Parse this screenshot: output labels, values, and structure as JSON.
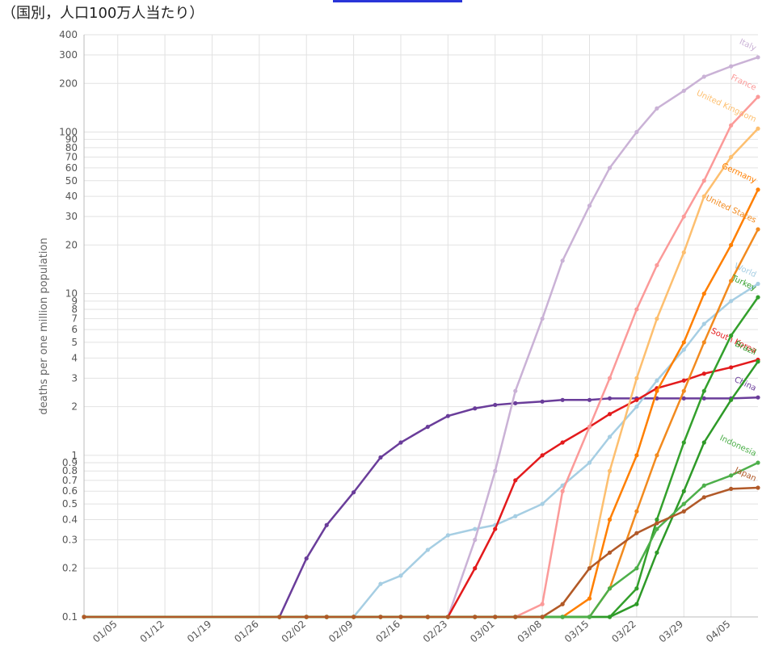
{
  "chart_data": {
    "type": "line",
    "title": "（国別，人口100万人当たり）",
    "y_label": "deaths per one million population",
    "log_scale": true,
    "grid": true,
    "x": [
      0,
      29,
      33,
      36,
      40,
      44,
      47,
      51,
      54,
      58,
      61,
      64,
      68,
      71,
      75,
      78,
      82,
      85,
      89,
      92,
      96,
      100
    ],
    "xlim": [
      0,
      100
    ],
    "xticks": [
      {
        "value": 5,
        "label": "01/05"
      },
      {
        "value": 12,
        "label": "01/12"
      },
      {
        "value": 19,
        "label": "01/19"
      },
      {
        "value": 26,
        "label": "01/26"
      },
      {
        "value": 33,
        "label": "02/02"
      },
      {
        "value": 40,
        "label": "02/09"
      },
      {
        "value": 47,
        "label": "02/16"
      },
      {
        "value": 54,
        "label": "02/23"
      },
      {
        "value": 61,
        "label": "03/01"
      },
      {
        "value": 68,
        "label": "03/08"
      },
      {
        "value": 75,
        "label": "03/15"
      },
      {
        "value": 82,
        "label": "03/22"
      },
      {
        "value": 89,
        "label": "03/29"
      },
      {
        "value": 96,
        "label": "04/05"
      }
    ],
    "ylim": [
      0.1,
      400
    ],
    "yticks": [
      0.1,
      0.2,
      0.3,
      0.4,
      0.5,
      0.6,
      0.7,
      0.8,
      0.9,
      1,
      2,
      3,
      4,
      5,
      6,
      7,
      8,
      9,
      10,
      20,
      30,
      40,
      50,
      60,
      70,
      80,
      90,
      100,
      200,
      300,
      400
    ],
    "series": [
      {
        "name": "China",
        "color": "#6a3d9a",
        "values": [
          0.1,
          0.1,
          0.23,
          0.37,
          0.59,
          0.97,
          1.2,
          1.5,
          1.75,
          1.95,
          2.05,
          2.1,
          2.15,
          2.2,
          2.2,
          2.25,
          2.25,
          2.25,
          2.25,
          2.25,
          2.25,
          2.28
        ]
      },
      {
        "name": "World",
        "color": "#a6cee3",
        "values": [
          0.1,
          0.1,
          0.1,
          0.1,
          0.1,
          0.16,
          0.18,
          0.26,
          0.32,
          0.35,
          0.37,
          0.42,
          0.5,
          0.65,
          0.9,
          1.3,
          2,
          2.9,
          4.5,
          6.5,
          9,
          11.5
        ]
      },
      {
        "name": "Italy",
        "color": "#cab2d6",
        "values": [
          0.1,
          0.1,
          0.1,
          0.1,
          0.1,
          0.1,
          0.1,
          0.1,
          0.1,
          0.3,
          0.8,
          2.5,
          7,
          16,
          35,
          60,
          100,
          140,
          180,
          220,
          255,
          290
        ]
      },
      {
        "name": "South Korea",
        "color": "#e31a1c",
        "values": [
          0.1,
          0.1,
          0.1,
          0.1,
          0.1,
          0.1,
          0.1,
          0.1,
          0.1,
          0.2,
          0.35,
          0.7,
          1.0,
          1.2,
          1.5,
          1.8,
          2.2,
          2.6,
          2.9,
          3.2,
          3.5,
          3.9
        ]
      },
      {
        "name": "France",
        "color": "#fb9a99",
        "values": [
          0.1,
          0.1,
          0.1,
          0.1,
          0.1,
          0.1,
          0.1,
          0.1,
          0.1,
          0.1,
          0.1,
          0.1,
          0.12,
          0.6,
          1.5,
          3,
          8,
          15,
          30,
          50,
          110,
          165
        ]
      },
      {
        "name": "United Kingdom",
        "color": "#fdbf6f",
        "values": [
          0.1,
          0.1,
          0.1,
          0.1,
          0.1,
          0.1,
          0.1,
          0.1,
          0.1,
          0.1,
          0.1,
          0.1,
          0.1,
          0.12,
          0.2,
          0.8,
          3,
          7,
          18,
          40,
          70,
          105
        ]
      },
      {
        "name": "Germany",
        "color": "#ff7f00",
        "values": [
          0.1,
          0.1,
          0.1,
          0.1,
          0.1,
          0.1,
          0.1,
          0.1,
          0.1,
          0.1,
          0.1,
          0.1,
          0.1,
          0.1,
          0.13,
          0.4,
          1,
          2.5,
          5,
          10,
          20,
          44
        ]
      },
      {
        "name": "United States",
        "color": "#f28a1e",
        "values": [
          0.1,
          0.1,
          0.1,
          0.1,
          0.1,
          0.1,
          0.1,
          0.1,
          0.1,
          0.1,
          0.1,
          0.1,
          0.1,
          0.1,
          0.1,
          0.15,
          0.45,
          1,
          2.5,
          5,
          12,
          25
        ]
      },
      {
        "name": "Turkey",
        "color": "#33a02c",
        "values": [
          0.1,
          0.1,
          0.1,
          0.1,
          0.1,
          0.1,
          0.1,
          0.1,
          0.1,
          0.1,
          0.1,
          0.1,
          0.1,
          0.1,
          0.1,
          0.1,
          0.15,
          0.4,
          1.2,
          2.5,
          5.5,
          9.5
        ]
      },
      {
        "name": "Brazil",
        "color": "#2e9a28",
        "values": [
          0.1,
          0.1,
          0.1,
          0.1,
          0.1,
          0.1,
          0.1,
          0.1,
          0.1,
          0.1,
          0.1,
          0.1,
          0.1,
          0.1,
          0.1,
          0.1,
          0.12,
          0.25,
          0.6,
          1.2,
          2.2,
          3.8
        ]
      },
      {
        "name": "Indonesia",
        "color": "#4daf4a",
        "values": [
          0.1,
          0.1,
          0.1,
          0.1,
          0.1,
          0.1,
          0.1,
          0.1,
          0.1,
          0.1,
          0.1,
          0.1,
          0.1,
          0.1,
          0.1,
          0.15,
          0.2,
          0.35,
          0.5,
          0.65,
          0.75,
          0.9
        ]
      },
      {
        "name": "Japan",
        "color": "#b15928",
        "values": [
          0.1,
          0.1,
          0.1,
          0.1,
          0.1,
          0.1,
          0.1,
          0.1,
          0.1,
          0.1,
          0.1,
          0.1,
          0.1,
          0.12,
          0.2,
          0.25,
          0.33,
          0.38,
          0.45,
          0.55,
          0.62,
          0.63
        ]
      }
    ]
  }
}
